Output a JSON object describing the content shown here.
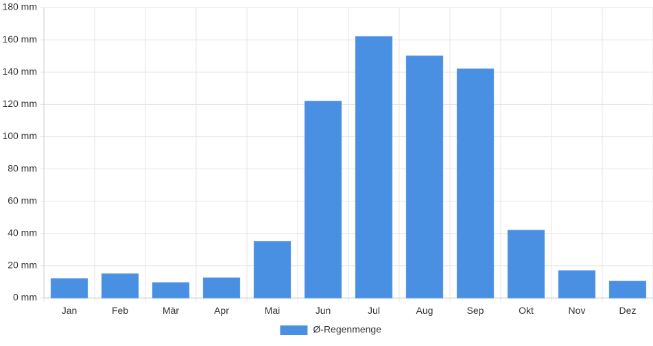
{
  "chart_data": {
    "type": "bar",
    "categories": [
      "Jan",
      "Feb",
      "Mär",
      "Apr",
      "Mai",
      "Jun",
      "Jul",
      "Aug",
      "Sep",
      "Okt",
      "Nov",
      "Dez"
    ],
    "series": [
      {
        "name": "Ø-Regenmenge",
        "values": [
          12,
          15,
          9.5,
          12.5,
          35,
          122,
          162,
          150,
          142,
          42,
          17,
          10.5
        ]
      }
    ],
    "ylim": [
      0,
      180
    ],
    "yticks": [
      0,
      20,
      40,
      60,
      80,
      100,
      120,
      140,
      160,
      180
    ],
    "y_unit": "mm",
    "grid": true,
    "legend_position": "bottom",
    "colors": {
      "bar": "#4a90e2",
      "grid": "#e5e5e5",
      "axis": "#cccccc",
      "text": "#333333"
    }
  }
}
